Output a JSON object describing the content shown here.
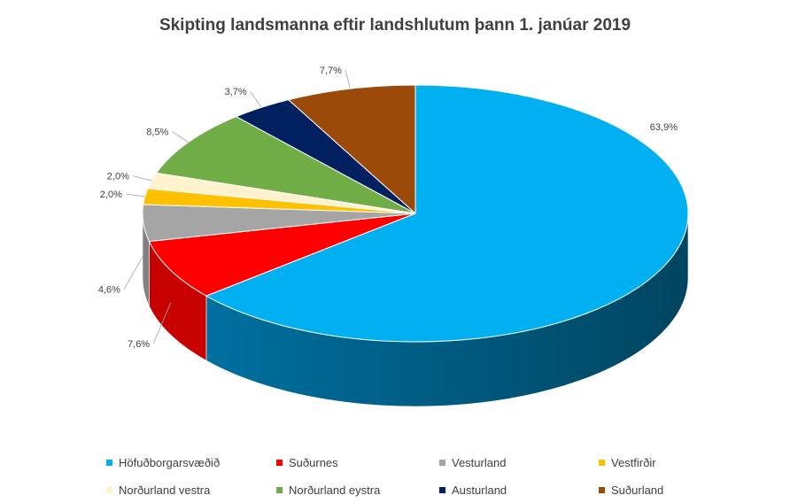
{
  "chart_data": {
    "type": "pie",
    "title": "Skipting landsmanna eftir landshlutum þann 1. janúar 2019",
    "categories": [
      "Höfuðborgarsvæðið",
      "Suðurnes",
      "Vesturland",
      "Vestfirðir",
      "Norðurland vestra",
      "Norðurland eystra",
      "Austurland",
      "Suðurland"
    ],
    "values": [
      63.9,
      7.6,
      4.6,
      2.0,
      2.0,
      8.5,
      3.7,
      7.7
    ],
    "data_labels": [
      "63,9%",
      "7,6%",
      "4,6%",
      "2,0%",
      "2,0%",
      "8,5%",
      "3,7%",
      "7,7%"
    ],
    "colors": [
      "#00b0f0",
      "#ff0000",
      "#a5a5a5",
      "#ffc000",
      "#fff2cc",
      "#70ad47",
      "#002060",
      "#9c4a0a"
    ],
    "legend_position": "bottom",
    "style": "3d"
  }
}
